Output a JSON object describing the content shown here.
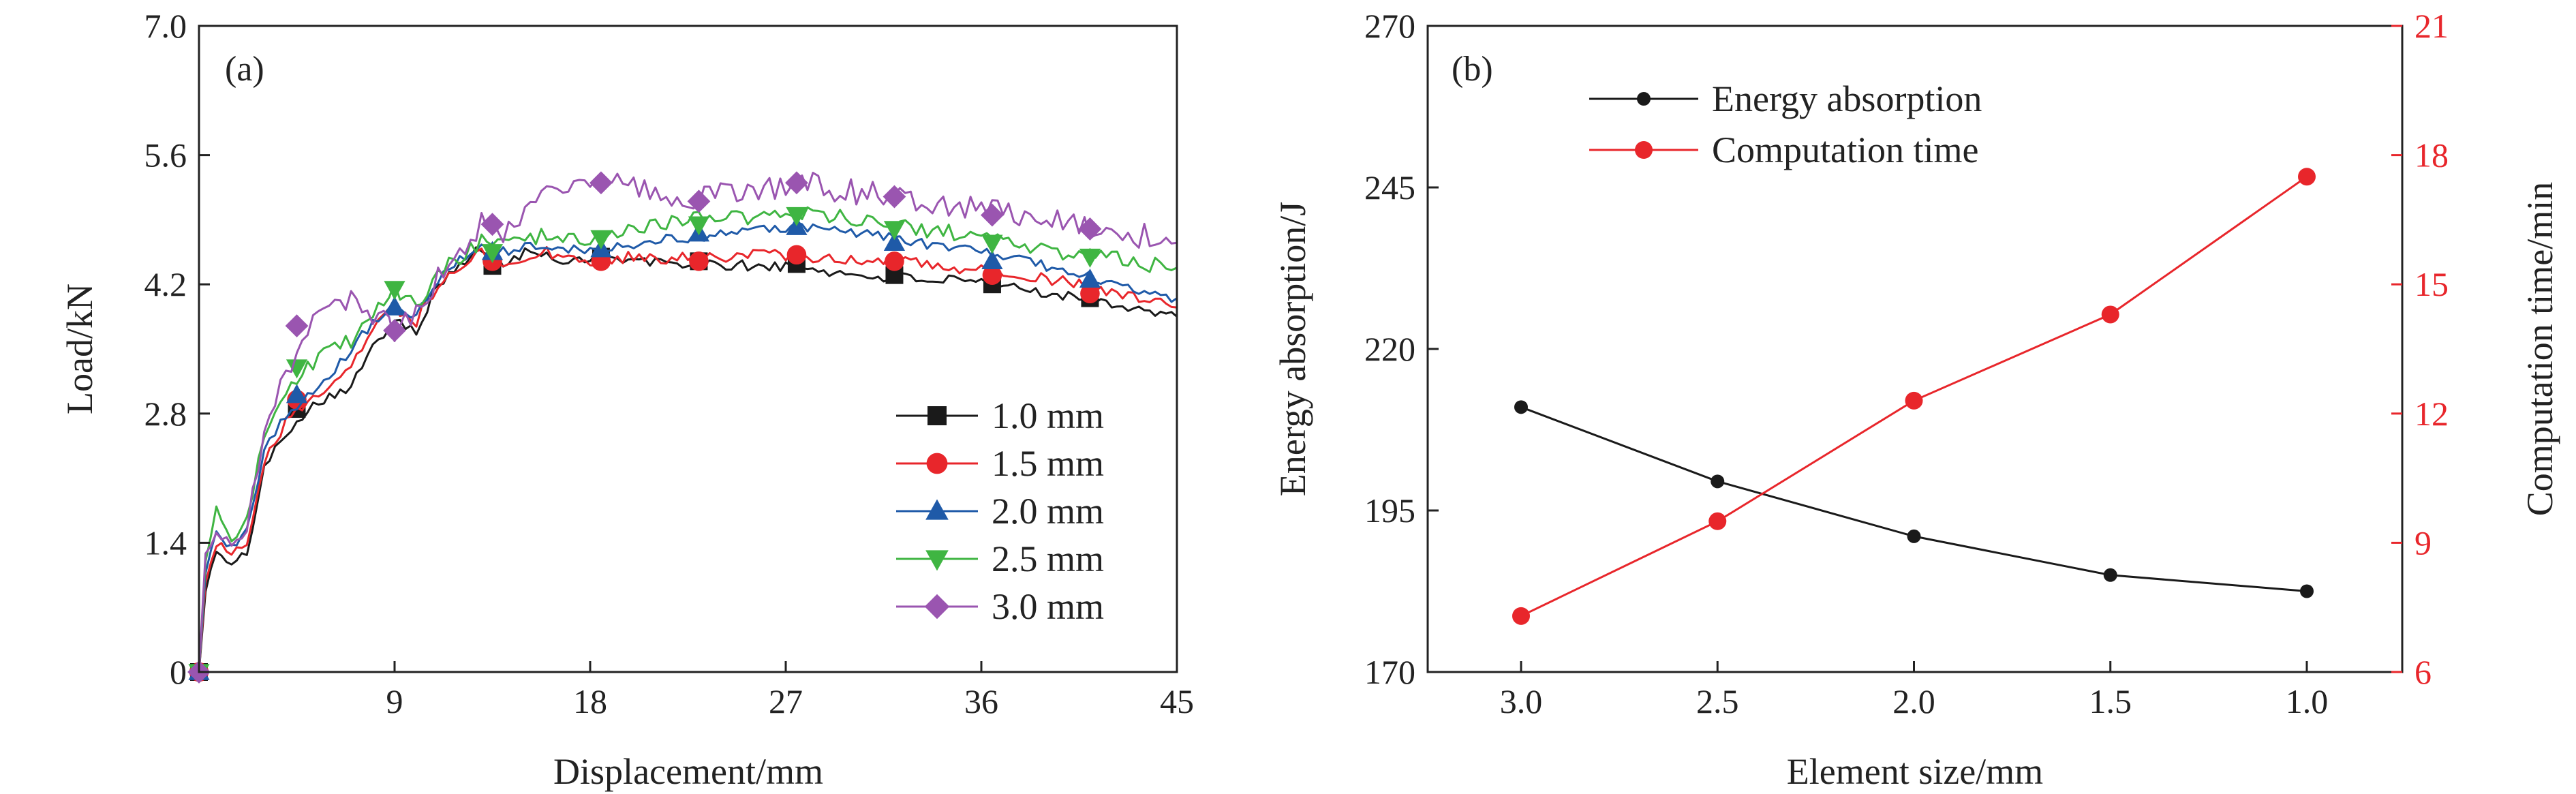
{
  "chart_data": [
    {
      "type": "line",
      "panel_label": "(a)",
      "xlabel": "Displacement/mm",
      "ylabel": "Load/kN",
      "xlim": [
        0,
        45
      ],
      "ylim": [
        0,
        7.0
      ],
      "xticks": [
        9,
        18,
        27,
        36,
        45
      ],
      "yticks": [
        0,
        1.4,
        2.8,
        4.2,
        5.6,
        7.0
      ],
      "ytick_labels": [
        "0",
        "1.4",
        "2.8",
        "4.2",
        "5.6",
        "7.0"
      ],
      "legend_position": "bottom-right",
      "series": [
        {
          "name": "1.0 mm",
          "color": "#1a1a1a",
          "marker": "square",
          "x": [
            0,
            0.3,
            0.8,
            1.5,
            2.2,
            3,
            4,
            5,
            6,
            7,
            8,
            9,
            10,
            11,
            12,
            13,
            14,
            15,
            16,
            17,
            18,
            20,
            22,
            24,
            26,
            28,
            30,
            32,
            34,
            36,
            38,
            40,
            42,
            44,
            45
          ],
          "y": [
            0,
            0.9,
            1.3,
            1.15,
            1.3,
            2.2,
            2.6,
            2.85,
            3.0,
            3.1,
            3.5,
            3.85,
            3.7,
            4.2,
            4.4,
            4.6,
            4.4,
            4.55,
            4.5,
            4.45,
            4.5,
            4.45,
            4.42,
            4.4,
            4.4,
            4.38,
            4.3,
            4.28,
            4.25,
            4.2,
            4.15,
            4.08,
            4.0,
            3.9,
            3.85
          ],
          "marker_x": [
            0,
            4.5,
            13.5,
            18.5,
            23,
            27.5,
            32,
            36.5,
            41
          ],
          "marker_y": [
            0,
            2.85,
            4.4,
            4.5,
            4.45,
            4.42,
            4.3,
            4.2,
            4.05
          ]
        },
        {
          "name": "1.5 mm",
          "color": "#e8262b",
          "marker": "circle",
          "x": [
            0,
            0.3,
            0.8,
            1.5,
            2.2,
            3,
            4,
            5,
            6,
            7,
            8,
            9,
            10,
            11,
            12,
            13,
            14,
            15,
            16,
            17,
            18,
            20,
            22,
            24,
            26,
            28,
            30,
            32,
            34,
            36,
            38,
            40,
            42,
            44,
            45
          ],
          "y": [
            0,
            1.0,
            1.4,
            1.3,
            1.4,
            2.3,
            2.7,
            2.95,
            3.1,
            3.3,
            3.7,
            3.95,
            3.8,
            4.2,
            4.4,
            4.55,
            4.45,
            4.5,
            4.55,
            4.5,
            4.45,
            4.5,
            4.48,
            4.5,
            4.52,
            4.5,
            4.48,
            4.45,
            4.4,
            4.35,
            4.3,
            4.22,
            4.12,
            4.0,
            3.95
          ],
          "marker_x": [
            0,
            4.5,
            13.5,
            18.5,
            23,
            27.5,
            32,
            36.5,
            41
          ],
          "marker_y": [
            0,
            2.95,
            4.45,
            4.45,
            4.45,
            4.52,
            4.45,
            4.3,
            4.1
          ]
        },
        {
          "name": "2.0 mm",
          "color": "#1f5aa8",
          "marker": "triangle-up",
          "x": [
            0,
            0.3,
            0.8,
            1.5,
            2.2,
            3,
            4,
            5,
            6,
            7,
            8,
            9,
            10,
            11,
            12,
            13,
            14,
            15,
            16,
            17,
            18,
            20,
            22,
            24,
            26,
            28,
            30,
            32,
            34,
            36,
            38,
            40,
            42,
            44,
            45
          ],
          "y": [
            0,
            1.1,
            1.5,
            1.35,
            1.5,
            2.4,
            2.8,
            3.0,
            3.2,
            3.5,
            3.8,
            3.95,
            3.85,
            4.25,
            4.45,
            4.6,
            4.55,
            4.6,
            4.62,
            4.6,
            4.58,
            4.65,
            4.7,
            4.75,
            4.8,
            4.82,
            4.75,
            4.7,
            4.62,
            4.55,
            4.45,
            4.35,
            4.22,
            4.1,
            4.05
          ],
          "marker_x": [
            0,
            4.5,
            9,
            13.5,
            18.5,
            23,
            27.5,
            32,
            36.5,
            41
          ],
          "marker_y": [
            0,
            3.0,
            3.95,
            4.55,
            4.58,
            4.75,
            4.82,
            4.65,
            4.45,
            4.25
          ]
        },
        {
          "name": "2.5 mm",
          "color": "#3fb542",
          "marker": "triangle-down",
          "x": [
            0,
            0.3,
            0.8,
            1.5,
            2.2,
            3,
            4,
            5,
            6,
            7,
            8,
            9,
            10,
            11,
            12,
            13,
            14,
            15,
            16,
            17,
            18,
            20,
            22,
            24,
            26,
            28,
            30,
            32,
            34,
            36,
            38,
            40,
            42,
            44,
            45
          ],
          "y": [
            0,
            1.2,
            1.8,
            1.4,
            1.6,
            2.6,
            3.0,
            3.3,
            3.5,
            3.6,
            3.9,
            4.15,
            3.95,
            4.3,
            4.5,
            4.65,
            4.6,
            4.7,
            4.72,
            4.68,
            4.7,
            4.8,
            4.88,
            4.92,
            4.95,
            4.98,
            4.9,
            4.85,
            4.78,
            4.7,
            4.62,
            4.55,
            4.48,
            4.4,
            4.38
          ],
          "marker_x": [
            0,
            4.5,
            9,
            13.5,
            18.5,
            23,
            27.5,
            32,
            36.5,
            41
          ],
          "marker_y": [
            0,
            3.3,
            4.15,
            4.55,
            4.7,
            4.85,
            4.95,
            4.8,
            4.65,
            4.5
          ]
        },
        {
          "name": "3.0 mm",
          "color": "#9a55b0",
          "marker": "diamond",
          "x": [
            0,
            0.3,
            0.8,
            1.5,
            2.2,
            3,
            4,
            5,
            6,
            7,
            8,
            9,
            10,
            11,
            12,
            13,
            14,
            15,
            16,
            17,
            18,
            20,
            22,
            24,
            26,
            28,
            30,
            32,
            34,
            36,
            38,
            40,
            42,
            44,
            45
          ],
          "y": [
            0,
            1.3,
            1.5,
            1.4,
            1.5,
            2.7,
            3.2,
            3.75,
            3.9,
            4.0,
            3.9,
            3.7,
            3.85,
            4.3,
            4.6,
            4.85,
            4.75,
            4.95,
            5.2,
            5.15,
            5.3,
            5.25,
            5.1,
            5.2,
            5.25,
            5.3,
            5.2,
            5.15,
            5.1,
            5.0,
            4.95,
            4.85,
            4.8,
            4.7,
            4.65
          ],
          "marker_x": [
            0,
            4.5,
            9,
            13.5,
            18.5,
            23,
            27.5,
            32,
            36.5,
            41
          ],
          "marker_y": [
            0,
            3.75,
            3.7,
            4.85,
            5.3,
            5.1,
            5.3,
            5.15,
            4.95,
            4.8
          ]
        }
      ]
    },
    {
      "type": "line",
      "panel_label": "(b)",
      "xlabel": "Element size/mm",
      "ylabel": "Energy absorption/J",
      "y2label": "Computation time/min",
      "categories": [
        "3.0",
        "2.5",
        "2.0",
        "1.5",
        "1.0"
      ],
      "ylim": [
        170,
        270
      ],
      "yticks": [
        170,
        195,
        220,
        245,
        270
      ],
      "y2lim": [
        6,
        21
      ],
      "y2ticks": [
        6,
        9,
        12,
        15,
        18,
        21
      ],
      "legend_position": "top-left",
      "series": [
        {
          "name": "Energy absorption",
          "color": "#1a1a1a",
          "axis": "left",
          "values": [
            211,
            199.5,
            191,
            185,
            182.5
          ]
        },
        {
          "name": "Computation time",
          "color": "#e8262b",
          "axis": "right",
          "values": [
            7.3,
            9.5,
            12.3,
            14.3,
            17.5
          ]
        }
      ]
    }
  ]
}
